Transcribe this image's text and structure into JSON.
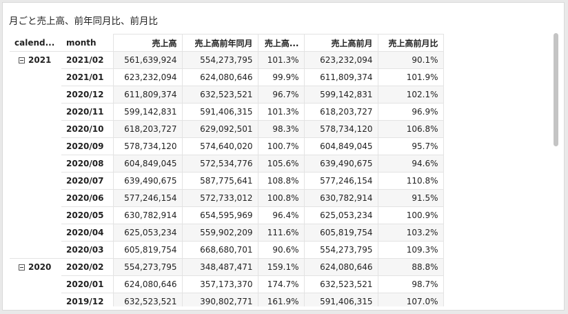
{
  "title": "月ごと売上高、前年同月比、前月比",
  "columns": [
    "calend...",
    "month",
    "売上高",
    "売上高前年同月",
    "売上高...",
    "売上高前月",
    "売上高前月比"
  ],
  "rows": [
    {
      "year": "2021",
      "month": "2021/02",
      "sales": "561,639,924",
      "prev_year": "554,273,795",
      "yoy": "101.3%",
      "prev_month": "623,232,094",
      "mom": "90.1%"
    },
    {
      "year": "",
      "month": "2021/01",
      "sales": "623,232,094",
      "prev_year": "624,080,646",
      "yoy": "99.9%",
      "prev_month": "611,809,374",
      "mom": "101.9%"
    },
    {
      "year": "",
      "month": "2020/12",
      "sales": "611,809,374",
      "prev_year": "632,523,521",
      "yoy": "96.7%",
      "prev_month": "599,142,831",
      "mom": "102.1%"
    },
    {
      "year": "",
      "month": "2020/11",
      "sales": "599,142,831",
      "prev_year": "591,406,315",
      "yoy": "101.3%",
      "prev_month": "618,203,727",
      "mom": "96.9%"
    },
    {
      "year": "",
      "month": "2020/10",
      "sales": "618,203,727",
      "prev_year": "629,092,501",
      "yoy": "98.3%",
      "prev_month": "578,734,120",
      "mom": "106.8%"
    },
    {
      "year": "",
      "month": "2020/09",
      "sales": "578,734,120",
      "prev_year": "574,640,020",
      "yoy": "100.7%",
      "prev_month": "604,849,045",
      "mom": "95.7%"
    },
    {
      "year": "",
      "month": "2020/08",
      "sales": "604,849,045",
      "prev_year": "572,534,776",
      "yoy": "105.6%",
      "prev_month": "639,490,675",
      "mom": "94.6%"
    },
    {
      "year": "",
      "month": "2020/07",
      "sales": "639,490,675",
      "prev_year": "587,775,641",
      "yoy": "108.8%",
      "prev_month": "577,246,154",
      "mom": "110.8%"
    },
    {
      "year": "",
      "month": "2020/06",
      "sales": "577,246,154",
      "prev_year": "572,733,012",
      "yoy": "100.8%",
      "prev_month": "630,782,914",
      "mom": "91.5%"
    },
    {
      "year": "",
      "month": "2020/05",
      "sales": "630,782,914",
      "prev_year": "654,595,969",
      "yoy": "96.4%",
      "prev_month": "625,053,234",
      "mom": "100.9%"
    },
    {
      "year": "",
      "month": "2020/04",
      "sales": "625,053,234",
      "prev_year": "559,902,209",
      "yoy": "111.6%",
      "prev_month": "605,819,754",
      "mom": "103.2%"
    },
    {
      "year": "",
      "month": "2020/03",
      "sales": "605,819,754",
      "prev_year": "668,680,701",
      "yoy": "90.6%",
      "prev_month": "554,273,795",
      "mom": "109.3%"
    },
    {
      "year": "2020",
      "month": "2020/02",
      "sales": "554,273,795",
      "prev_year": "348,487,471",
      "yoy": "159.1%",
      "prev_month": "624,080,646",
      "mom": "88.8%"
    },
    {
      "year": "",
      "month": "2020/01",
      "sales": "624,080,646",
      "prev_year": "357,173,370",
      "yoy": "174.7%",
      "prev_month": "632,523,521",
      "mom": "98.7%"
    },
    {
      "year": "",
      "month": "2019/12",
      "sales": "632,523,521",
      "prev_year": "390,802,771",
      "yoy": "161.9%",
      "prev_month": "591,406,315",
      "mom": "107.0%"
    }
  ],
  "colors": {
    "grid": "#e3e3e3",
    "stripe": "#f6f6f6",
    "scrollbar": "#c4c4c4"
  }
}
